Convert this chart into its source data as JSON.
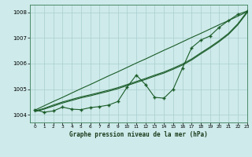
{
  "title": "Graphe pression niveau de la mer (hPa)",
  "background_color": "#ceeaea",
  "grid_color": "#aacece",
  "line_color": "#1a5c28",
  "xlim": [
    -0.5,
    23
  ],
  "ylim": [
    1003.7,
    1008.3
  ],
  "yticks": [
    1004,
    1005,
    1006,
    1007,
    1008
  ],
  "xtick_labels": [
    "0",
    "1",
    "2",
    "3",
    "4",
    "5",
    "6",
    "7",
    "8",
    "9",
    "10",
    "11",
    "12",
    "13",
    "14",
    "15",
    "16",
    "17",
    "18",
    "19",
    "20",
    "21",
    "22",
    "23"
  ],
  "main_data": [
    1004.2,
    1004.1,
    1004.15,
    1004.3,
    1004.22,
    1004.2,
    1004.28,
    1004.32,
    1004.38,
    1004.52,
    1005.08,
    1005.55,
    1005.18,
    1004.68,
    1004.65,
    1005.0,
    1005.82,
    1006.62,
    1006.92,
    1007.08,
    1007.42,
    1007.68,
    1007.92,
    1008.05
  ],
  "trend_line": [
    1004.18,
    1004.35,
    1004.52,
    1004.68,
    1004.85,
    1005.02,
    1005.18,
    1005.35,
    1005.52,
    1005.68,
    1005.85,
    1006.02,
    1006.18,
    1006.35,
    1006.52,
    1006.68,
    1006.85,
    1007.02,
    1007.18,
    1007.35,
    1007.52,
    1007.68,
    1007.85,
    1008.02
  ],
  "smooth_line1": [
    1004.15,
    1004.25,
    1004.38,
    1004.5,
    1004.6,
    1004.7,
    1004.78,
    1004.87,
    1004.96,
    1005.06,
    1005.18,
    1005.3,
    1005.42,
    1005.55,
    1005.67,
    1005.82,
    1005.98,
    1006.18,
    1006.42,
    1006.65,
    1006.9,
    1007.18,
    1007.55,
    1008.02
  ],
  "smooth_line2": [
    1004.12,
    1004.22,
    1004.34,
    1004.46,
    1004.56,
    1004.66,
    1004.74,
    1004.83,
    1004.92,
    1005.02,
    1005.14,
    1005.26,
    1005.38,
    1005.51,
    1005.63,
    1005.78,
    1005.94,
    1006.14,
    1006.38,
    1006.61,
    1006.86,
    1007.14,
    1007.51,
    1007.98
  ]
}
